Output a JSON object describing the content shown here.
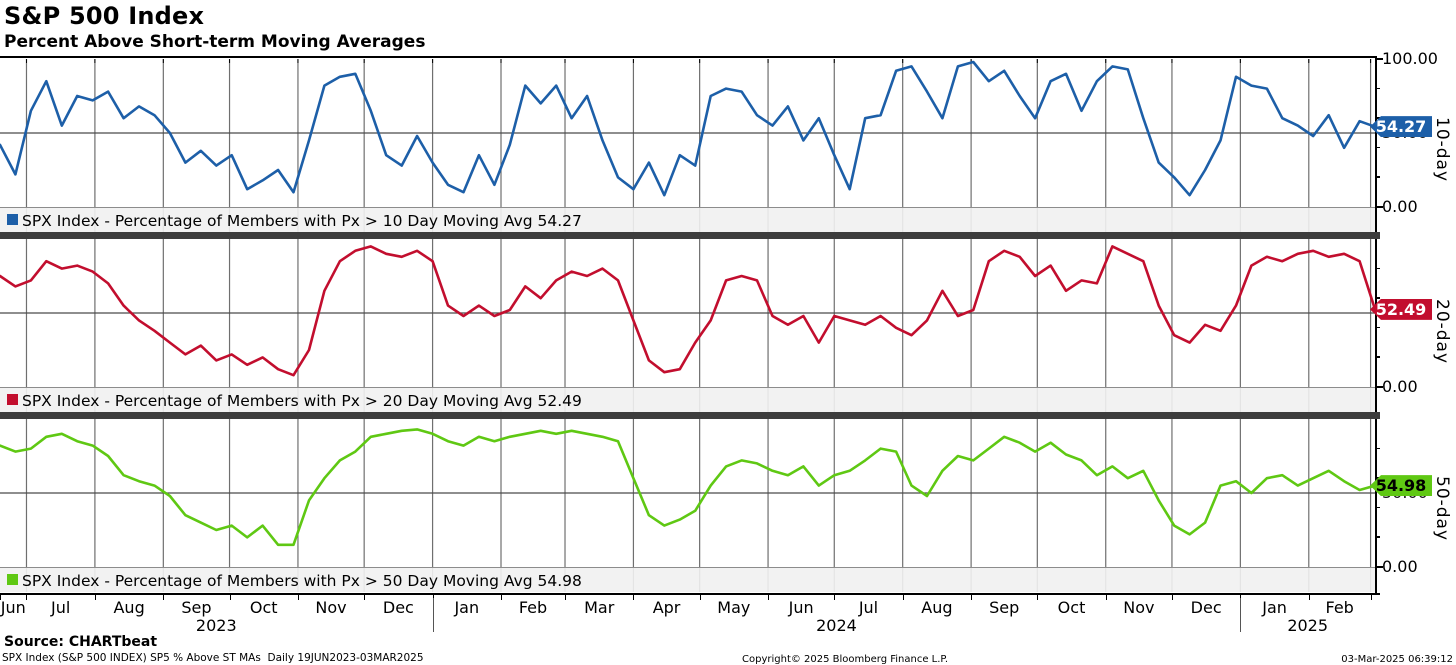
{
  "header": {
    "title": "S&P 500 Index",
    "subtitle": "Percent Above Short-term Moving Averages"
  },
  "footer": {
    "source": "Source: CHARTbeat",
    "description": "SPX Index (S&P 500 INDEX) SP5 % Above ST MAs  Daily 19JUN2023-03MAR2025",
    "copyright": "Copyright© 2025 Bloomberg Finance L.P.",
    "timestamp": "03-Mar-2025 06:39:12"
  },
  "chart_data": {
    "type": "line",
    "title": "S&P 500 Index",
    "subtitle": "Percent Above Short-term Moving Averages",
    "x_range": "19JUN2023 - 03MAR2025",
    "sample_interval": "weekly (approximate readings)",
    "ylim": [
      0,
      100
    ],
    "yticks_labeled": [
      "100.00",
      "50.00",
      "0.00"
    ],
    "yticks_minor": [
      20,
      40,
      60,
      80
    ],
    "grid": "vertical month gridlines + horizontal line at 50",
    "legend_position": "bottom strip inside each panel",
    "month_labels": [
      "Jun",
      "Jul",
      "Aug",
      "Sep",
      "Oct",
      "Nov",
      "Dec",
      "Jan",
      "Feb",
      "Mar",
      "Apr",
      "May",
      "Jun",
      "Jul",
      "Aug",
      "Sep",
      "Oct",
      "Nov",
      "Dec",
      "Jan",
      "Feb"
    ],
    "month_boundary_day_offsets": [
      0,
      12,
      43,
      74,
      104,
      135,
      165,
      196,
      227,
      256,
      287,
      317,
      348,
      378,
      409,
      440,
      470,
      501,
      531,
      562,
      593,
      621
    ],
    "total_days": 623,
    "year_labels": [
      "2023",
      "2024",
      "2025"
    ],
    "year_start_day_offsets": [
      0,
      196,
      562
    ],
    "grid_color": "#6f6f6f",
    "mid_line_color": "#4a4a4a",
    "panels": [
      {
        "axis_label": "10-day",
        "legend": "SPX Index - Percentage of Members with Px > 10 Day Moving Avg 54.27",
        "name": "SPX Index - Percentage of Members with Px > 10 Day Moving Avg",
        "last_value": "54.27",
        "color": "#1d5fa8",
        "badge_text_color": "#ffffff",
        "show_top_label": true,
        "values": [
          42,
          22,
          65,
          85,
          55,
          75,
          72,
          78,
          60,
          68,
          62,
          50,
          30,
          38,
          28,
          35,
          12,
          18,
          25,
          10,
          45,
          82,
          88,
          90,
          65,
          35,
          28,
          48,
          30,
          15,
          10,
          35,
          15,
          42,
          82,
          70,
          82,
          60,
          75,
          45,
          20,
          12,
          30,
          8,
          35,
          28,
          75,
          80,
          78,
          62,
          55,
          68,
          45,
          60,
          35,
          12,
          60,
          62,
          92,
          95,
          78,
          60,
          95,
          98,
          85,
          92,
          75,
          60,
          85,
          90,
          65,
          85,
          95,
          93,
          60,
          30,
          20,
          8,
          25,
          45,
          88,
          82,
          80,
          60,
          55,
          48,
          62,
          40,
          58,
          54.27
        ]
      },
      {
        "axis_label": "20-day",
        "legend": "SPX Index - Percentage of Members with Px > 20 Day Moving Avg 52.49",
        "name": "SPX Index - Percentage of Members with Px > 20 Day Moving Avg",
        "last_value": "52.49",
        "color": "#c20e2e",
        "badge_text_color": "#ffffff",
        "show_top_label": false,
        "values": [
          75,
          68,
          72,
          85,
          80,
          82,
          78,
          70,
          55,
          45,
          38,
          30,
          22,
          28,
          18,
          22,
          15,
          20,
          12,
          8,
          25,
          65,
          85,
          92,
          95,
          90,
          88,
          92,
          85,
          55,
          48,
          55,
          48,
          52,
          68,
          60,
          72,
          78,
          75,
          80,
          72,
          45,
          18,
          10,
          12,
          30,
          45,
          72,
          75,
          72,
          48,
          42,
          48,
          30,
          48,
          45,
          42,
          48,
          40,
          35,
          45,
          65,
          48,
          52,
          85,
          92,
          88,
          75,
          82,
          65,
          72,
          70,
          95,
          90,
          85,
          55,
          35,
          30,
          42,
          38,
          55,
          82,
          88,
          85,
          90,
          92,
          88,
          90,
          85,
          52.49
        ]
      },
      {
        "axis_label": "50-day",
        "legend": "SPX Index - Percentage of Members with Px > 50 Day Moving Avg 54.98",
        "name": "SPX Index - Percentage of Members with Px > 50 Day Moving Avg",
        "last_value": "54.98",
        "color": "#5fc813",
        "badge_text_color": "#000000",
        "show_top_label": false,
        "values": [
          82,
          78,
          80,
          88,
          90,
          85,
          82,
          75,
          62,
          58,
          55,
          48,
          35,
          30,
          25,
          28,
          20,
          28,
          15,
          15,
          45,
          60,
          72,
          78,
          88,
          90,
          92,
          93,
          90,
          85,
          82,
          88,
          85,
          88,
          90,
          92,
          90,
          92,
          90,
          88,
          85,
          60,
          35,
          28,
          32,
          38,
          55,
          68,
          72,
          70,
          65,
          62,
          68,
          55,
          62,
          65,
          72,
          80,
          78,
          55,
          48,
          65,
          75,
          72,
          80,
          88,
          84,
          78,
          84,
          76,
          72,
          62,
          68,
          60,
          65,
          45,
          28,
          22,
          30,
          55,
          58,
          50,
          60,
          62,
          55,
          60,
          65,
          58,
          52,
          54.98
        ]
      }
    ]
  }
}
